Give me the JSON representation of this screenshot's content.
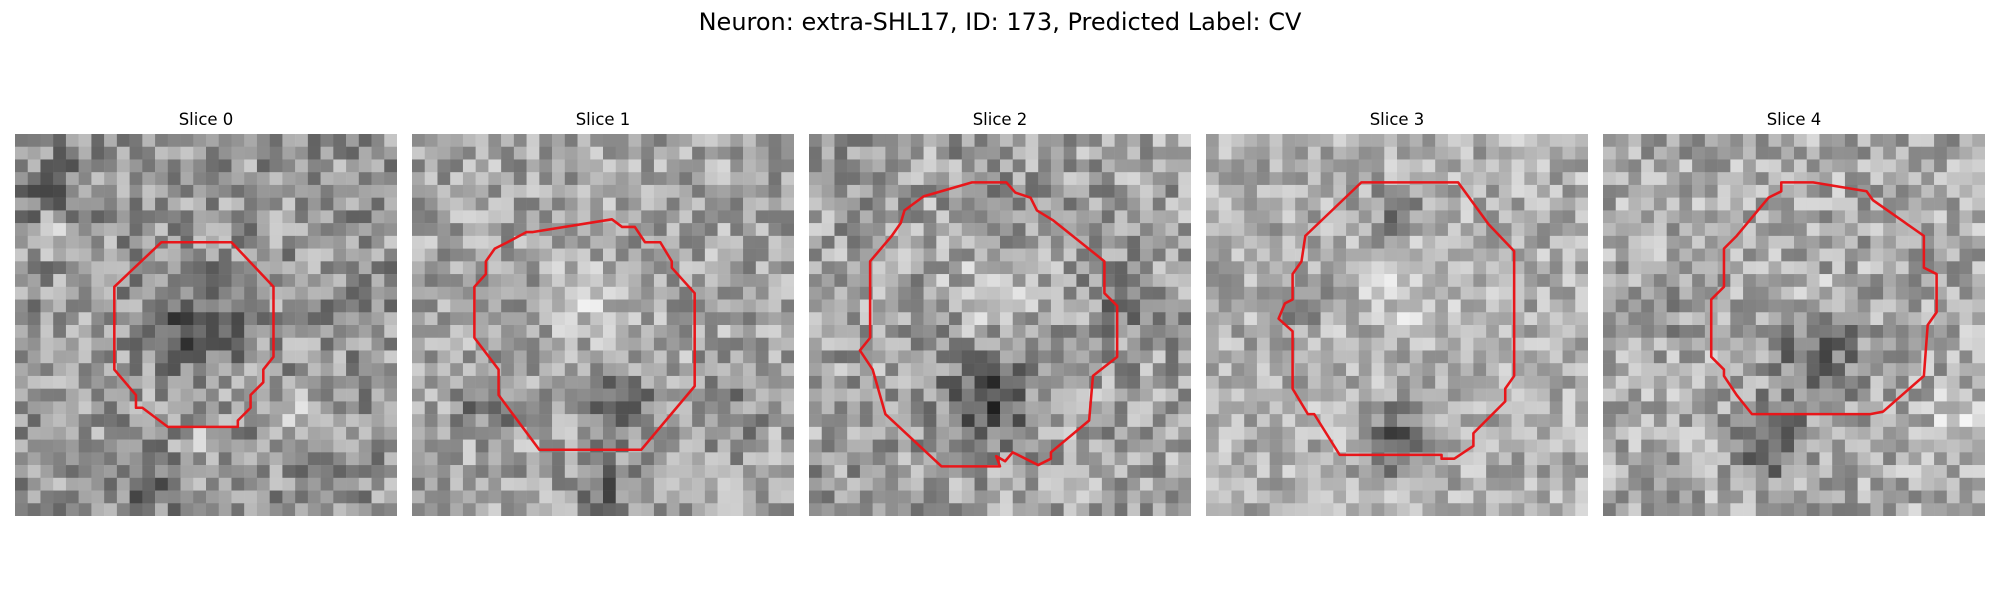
{
  "figure": {
    "title": "Neuron: extra-SHL17, ID: 173, Predicted Label: CV"
  },
  "panels": [
    {
      "title": "Slice 0"
    },
    {
      "title": "Slice 1"
    },
    {
      "title": "Slice 2"
    },
    {
      "title": "Slice 3"
    },
    {
      "title": "Slice 4"
    }
  ],
  "colors": {
    "contour": "#e8161a",
    "background": "#ffffff"
  },
  "image_style": "grayscale-microscopy-noise"
}
